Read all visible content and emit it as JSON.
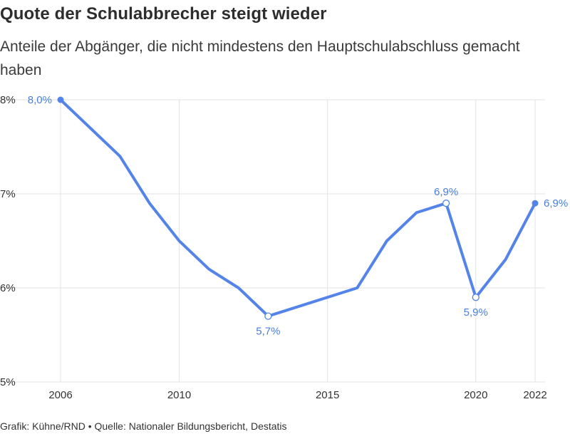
{
  "header": {
    "title": "Quote der Schulabbrecher steigt wieder",
    "subtitle": "Anteile der Abgänger, die nicht mindestens den Hauptschulabschluss gemacht haben"
  },
  "footer": {
    "credit": "Grafik: Kühne/RND • Quelle: Nationaler Bildungsbericht, Destatis"
  },
  "chart_data": {
    "type": "line",
    "x": [
      2006,
      2008,
      2009,
      2010,
      2011,
      2012,
      2013,
      2016,
      2017,
      2018,
      2019,
      2020,
      2021,
      2022
    ],
    "series": [
      {
        "values": [
          8.0,
          7.4,
          6.9,
          6.5,
          6.2,
          6.0,
          5.7,
          6.0,
          6.5,
          6.8,
          6.9,
          5.9,
          6.3,
          6.9
        ]
      }
    ],
    "xlim": [
      2006,
      2022
    ],
    "ylim": [
      5,
      8
    ],
    "x_ticks": [
      2006,
      2010,
      2015,
      2020,
      2022
    ],
    "y_ticks": [
      5,
      6,
      7,
      8
    ],
    "y_tick_labels": [
      "5%",
      "6%",
      "7%",
      "8%"
    ],
    "data_labels": [
      {
        "x": 2006,
        "y": 8.0,
        "text": "8,0%",
        "marker": "filled",
        "pos": "left"
      },
      {
        "x": 2013,
        "y": 5.7,
        "text": "5,7%",
        "marker": "hollow",
        "pos": "below"
      },
      {
        "x": 2019,
        "y": 6.9,
        "text": "6,9%",
        "marker": "hollow",
        "pos": "above"
      },
      {
        "x": 2020,
        "y": 5.9,
        "text": "5,9%",
        "marker": "hollow",
        "pos": "below"
      },
      {
        "x": 2022,
        "y": 6.9,
        "text": "6,9%",
        "marker": "filled",
        "pos": "right"
      }
    ],
    "grid": true,
    "line_color": "#5484ea",
    "label_color": "#4a7ee0"
  }
}
